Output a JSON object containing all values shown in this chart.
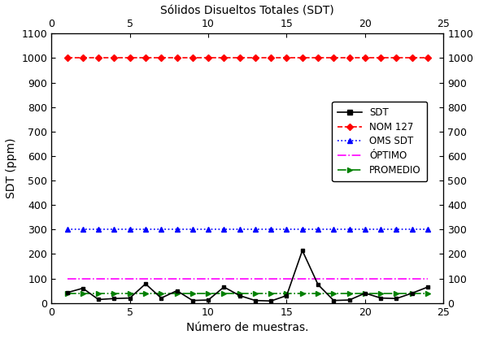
{
  "title_top": "Sólidos Disueltos Totales (SDT)",
  "xlabel_bottom": "Número de muestras.",
  "ylabel_left": "SDT (ppm)",
  "xlim": [
    0,
    25
  ],
  "ylim": [
    0,
    1100
  ],
  "yticks": [
    0,
    100,
    200,
    300,
    400,
    500,
    600,
    700,
    800,
    900,
    1000,
    1100
  ],
  "xticks": [
    0,
    5,
    10,
    15,
    20,
    25
  ],
  "sdt_x": [
    1,
    2,
    3,
    4,
    5,
    6,
    7,
    8,
    9,
    10,
    11,
    12,
    13,
    14,
    15,
    16,
    17,
    18,
    19,
    20,
    21,
    22,
    23,
    24
  ],
  "sdt_y": [
    42,
    60,
    14,
    18,
    20,
    78,
    20,
    50,
    10,
    12,
    65,
    30,
    10,
    8,
    30,
    214,
    75,
    10,
    12,
    40,
    20,
    18,
    40,
    65
  ],
  "nom127_value": 1000,
  "oms_sdt_value": 300,
  "optimo_value": 100,
  "promedio_value": 40,
  "sdt_color": "#000000",
  "nom127_color": "#ff0000",
  "oms_color": "#0000ff",
  "optimo_color": "#ff00ff",
  "promedio_color": "#008000",
  "legend_labels": [
    "SDT",
    "NOM 127",
    "OMS SDT",
    "ÓPTIMO",
    "PROMEDIO"
  ],
  "bg_color": "#ffffff",
  "font_size": 10,
  "tick_labelsize": 9
}
